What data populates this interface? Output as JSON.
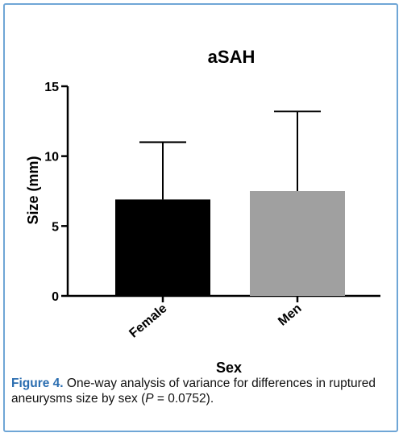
{
  "chart_data": {
    "type": "bar",
    "title": "aSAH",
    "xlabel": "Sex",
    "ylabel": "Size (mm)",
    "categories": [
      "Female",
      "Men"
    ],
    "values": [
      6.9,
      7.5
    ],
    "error_upper": [
      11.0,
      13.2
    ],
    "colors": [
      "#000000",
      "#a0a0a0"
    ],
    "ylim": [
      0,
      15
    ],
    "yticks": [
      0,
      5,
      10,
      15
    ],
    "grid": false,
    "legend": "none"
  },
  "caption": {
    "label": "Figure 4.",
    "text_before": "One-way analysis of variance for differences in ruptured aneurysms size by sex (",
    "p_symbol": "P",
    "text_after": " = 0.0752)."
  },
  "colors": {
    "border": "#6fa6d6",
    "caption_label": "#2a6db0"
  }
}
